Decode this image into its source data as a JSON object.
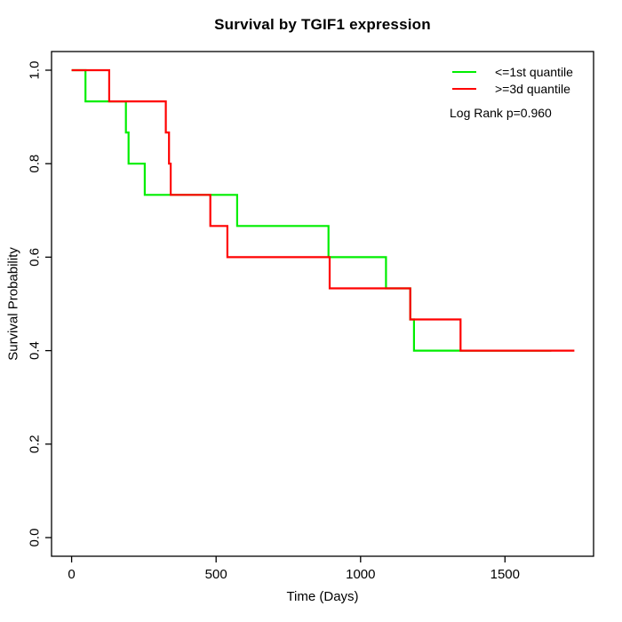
{
  "chart_data": {
    "type": "line",
    "subtype": "kaplan-meier-step",
    "title": "Survival by TGIF1 expression",
    "xlabel": "Time (Days)",
    "ylabel": "Survival Probability",
    "xlim": [
      -69.5,
      1806.5
    ],
    "ylim": [
      -0.04,
      1.04
    ],
    "grid": false,
    "box": true,
    "legend_position": "top-right",
    "annotation": "Log Rank p=0.960",
    "x_ticks": [
      {
        "label": "0",
        "value": 0
      },
      {
        "label": "500",
        "value": 500
      },
      {
        "label": "1000",
        "value": 1000
      },
      {
        "label": "1500",
        "value": 1500
      }
    ],
    "y_ticks": [
      {
        "label": "0.0",
        "value": 0.0
      },
      {
        "label": "0.2",
        "value": 0.2
      },
      {
        "label": "0.4",
        "value": 0.4
      },
      {
        "label": "0.6",
        "value": 0.6
      },
      {
        "label": "0.8",
        "value": 0.8
      },
      {
        "label": "1.0",
        "value": 1.0
      }
    ],
    "series": [
      {
        "name": "<=1st quantile",
        "color": "#00ee00",
        "end_time": 1660,
        "steps": [
          [
            0,
            1.0
          ],
          [
            48,
            0.9333
          ],
          [
            188,
            0.8667
          ],
          [
            197,
            0.8
          ],
          [
            253,
            0.7333
          ],
          [
            573,
            0.6667
          ],
          [
            889,
            0.6
          ],
          [
            1088,
            0.5333
          ],
          [
            1172,
            0.4667
          ],
          [
            1185,
            0.4
          ]
        ]
      },
      {
        "name": ">=3d quantile",
        "color": "#ff0000",
        "end_time": 1740,
        "steps": [
          [
            0,
            1.0
          ],
          [
            130,
            0.9333
          ],
          [
            326,
            0.8667
          ],
          [
            337,
            0.8
          ],
          [
            343,
            0.7333
          ],
          [
            480,
            0.6667
          ],
          [
            539,
            0.6
          ],
          [
            893,
            0.5333
          ],
          [
            1172,
            0.4667
          ],
          [
            1346,
            0.4
          ]
        ]
      }
    ]
  }
}
